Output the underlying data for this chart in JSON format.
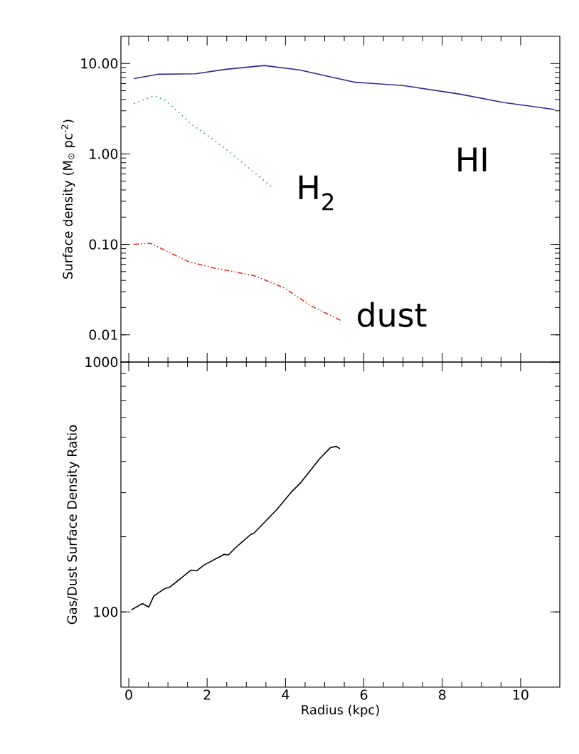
{
  "chart_data": [
    {
      "type": "line",
      "ylabel": "Surface density (M$_{⊙}$ pc$^{-2}$)",
      "log": "y",
      "tick_labels": "y",
      "xlim": [
        -0.2,
        11
      ],
      "xticks": [
        0,
        2,
        4,
        6,
        8,
        10
      ],
      "ylim": [
        0.005,
        20
      ],
      "yticks": [
        {
          "value": 0.01,
          "label": "0.01"
        },
        {
          "value": 0.1,
          "label": "0.10"
        },
        {
          "value": 1,
          "label": "1.00"
        },
        {
          "value": 10,
          "label": "10.00"
        }
      ],
      "series": [
        {
          "name": "HI",
          "color": "#2b2b8f",
          "line_style": "solid",
          "x": [
            0.13,
            0.74,
            1.7,
            2.45,
            3.45,
            4.35,
            5.1,
            5.78,
            7.0,
            8.43,
            9.58,
            10.87
          ],
          "values": [
            6.8,
            7.6,
            7.7,
            8.6,
            9.5,
            8.5,
            7.2,
            6.2,
            5.7,
            4.6,
            3.7,
            3.1
          ]
        },
        {
          "name": "H$_{2}$",
          "color": "#22aa44",
          "line_style": "dotted",
          "x": [
            0.13,
            0.65,
            0.94,
            1.59,
            2.26,
            2.92,
            3.65
          ],
          "values": [
            3.6,
            4.4,
            3.9,
            2.15,
            1.34,
            0.79,
            0.43
          ]
        },
        {
          "name": "dust",
          "color": "#e0301e",
          "line_style": "dashdotted",
          "x": [
            0.13,
            0.55,
            1.5,
            2.07,
            3.21,
            3.97,
            4.64,
            5.4
          ],
          "values": [
            0.1,
            0.103,
            0.065,
            0.056,
            0.045,
            0.033,
            0.021,
            0.0145
          ]
        }
      ]
    },
    {
      "type": "line",
      "xlabel": "Radius (kpc)",
      "ylabel": "Gas/Dust Surface Density Ratio",
      "log": "y",
      "xlim": [
        -0.2,
        11
      ],
      "xticks": [
        0,
        2,
        4,
        6,
        8,
        10
      ],
      "ylim": [
        50,
        1000
      ],
      "yticks": [
        100,
        1000
      ],
      "series": [
        {
          "color": "#000000",
          "line_style": "solid",
          "x": [
            0.06,
            0.35,
            0.51,
            0.64,
            0.92,
            1.06,
            1.59,
            1.73,
            1.92,
            2.44,
            2.54,
            2.73,
            3.11,
            3.2,
            3.78,
            4.15,
            4.39,
            4.87,
            5.15,
            5.29,
            5.39
          ],
          "values": [
            101.7,
            108,
            104.5,
            115.8,
            124,
            126,
            147,
            146,
            154,
            170,
            169,
            181,
            204,
            207,
            257,
            302,
            329,
            410,
            455,
            460,
            450
          ]
        }
      ]
    }
  ]
}
